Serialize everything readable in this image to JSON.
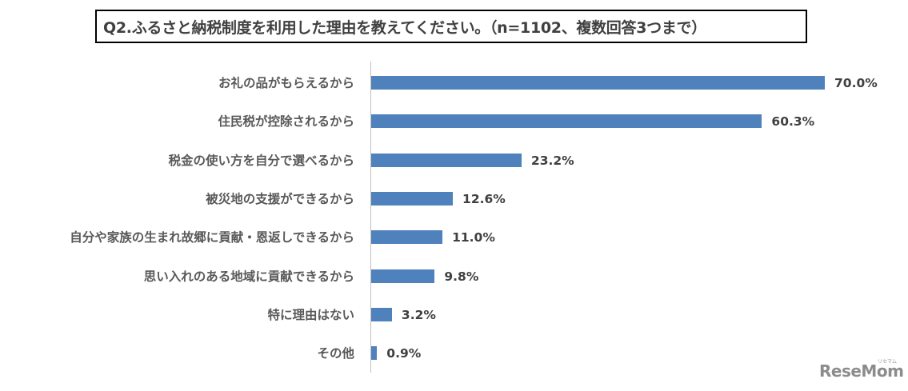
{
  "title": "Q2.ふるさと納税制度を利用した理由を教えてください。（n=1102、複数回答3つまで）",
  "logo": {
    "text": "ReseMom",
    "sub": "リセマム"
  },
  "colors": {
    "bar": "#4f81bd",
    "axis": "#bfbfbf",
    "label": "#595959",
    "value": "#404040"
  },
  "chart_data": {
    "type": "bar",
    "orientation": "horizontal",
    "title": "Q2.ふるさと納税制度を利用した理由を教えてください。（n=1102、複数回答3つまで）",
    "xlabel": "",
    "ylabel": "",
    "xlim": [
      0,
      70
    ],
    "grid": false,
    "legend": null,
    "unit": "%",
    "categories": [
      "お礼の品がもらえるから",
      "住民税が控除されるから",
      "税金の使い方を自分で選べるから",
      "被災地の支援ができるから",
      "自分や家族の生まれ故郷に貢献・恩返しできるから",
      "思い入れのある地域に貢献できるから",
      "特に理由はない",
      "その他"
    ],
    "values": [
      70.0,
      60.3,
      23.2,
      12.6,
      11.0,
      9.8,
      3.2,
      0.9
    ],
    "value_labels": [
      "70.0%",
      "60.3%",
      "23.2%",
      "12.6%",
      "11.0%",
      "9.8%",
      "3.2%",
      "0.9%"
    ]
  }
}
